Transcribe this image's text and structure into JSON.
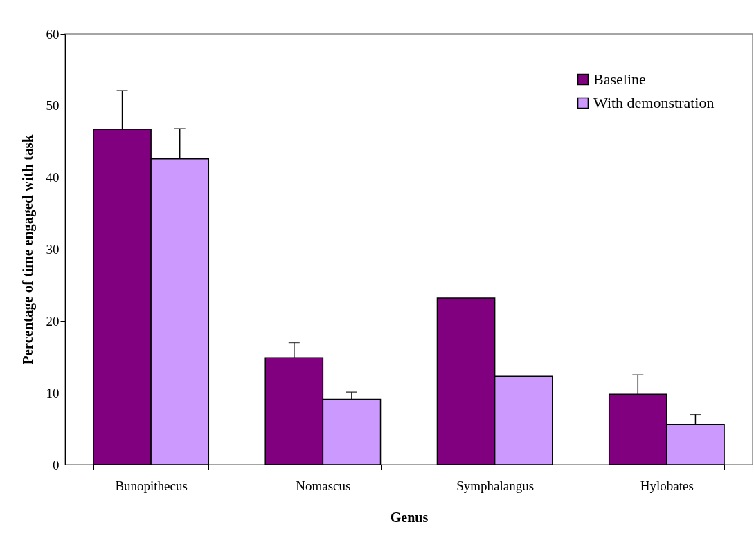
{
  "chart_data": {
    "type": "bar",
    "xlabel": "Genus",
    "ylabel": "Percentage of time engaged with task",
    "categories": [
      "Bunopithecus",
      "Nomascus",
      "Symphalangus",
      "Hylobates"
    ],
    "series": [
      {
        "name": "Baseline",
        "color": "#800080",
        "values": [
          46.7,
          14.9,
          23.2,
          9.8
        ],
        "errors": [
          [
            46.7,
            52.1
          ],
          [
            14.9,
            17.0
          ],
          null,
          [
            9.8,
            12.5
          ]
        ]
      },
      {
        "name": "With demonstration",
        "color": "#cc99ff",
        "values": [
          42.6,
          9.1,
          12.3,
          5.6
        ],
        "errors": [
          [
            42.6,
            46.8
          ],
          [
            9.1,
            10.1
          ],
          null,
          [
            5.6,
            7.0
          ]
        ]
      }
    ],
    "ylim": [
      0,
      60
    ],
    "yticks": [
      0,
      10,
      20,
      30,
      40,
      50,
      60
    ],
    "grid": false,
    "legend": "top right"
  }
}
